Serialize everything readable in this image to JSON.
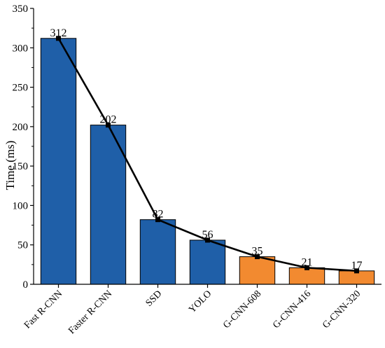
{
  "chart_data": {
    "type": "bar",
    "title": "",
    "xlabel": "",
    "ylabel": "Time (ms)",
    "ylim": [
      0,
      350
    ],
    "yticks": [
      0,
      50,
      100,
      150,
      200,
      250,
      300,
      350
    ],
    "categories": [
      "Fast R-CNN",
      "Faster R-CNN",
      "SSD",
      "YOLO",
      "G-CNN-608",
      "G-CNN-416",
      "G-CNN-320"
    ],
    "values": [
      312,
      202,
      82,
      56,
      35,
      21,
      17
    ],
    "bar_colors": [
      "#1f5fa8",
      "#1f5fa8",
      "#1f5fa8",
      "#1f5fa8",
      "#f28a30",
      "#f28a30",
      "#f28a30"
    ],
    "data_labels": [
      "312",
      "202",
      "82",
      "56",
      "35",
      "21",
      "17"
    ],
    "overlay_line": {
      "values": [
        312,
        202,
        82,
        56,
        35,
        21,
        17
      ],
      "color": "#000000",
      "marker": "square"
    },
    "grid": false,
    "legend": "none"
  }
}
